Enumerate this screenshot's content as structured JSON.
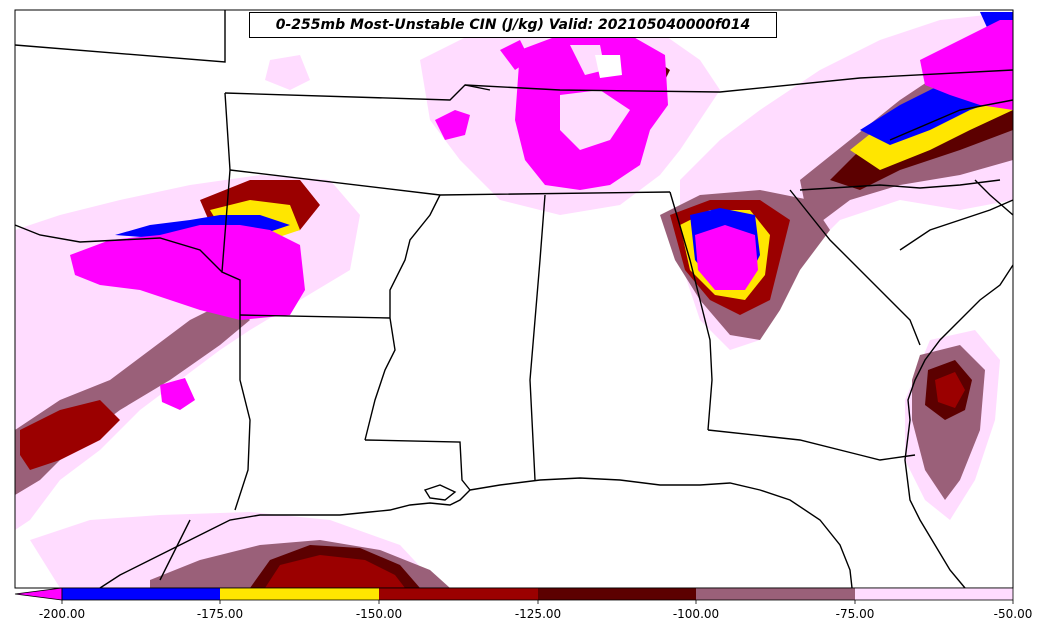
{
  "title": "0-255mb Most-Unstable CIN (J/kg) Valid: 202105040000f014",
  "colorbar": {
    "ticks": [
      "-200.00",
      "-175.00",
      "-150.00",
      "-125.00",
      "-100.00",
      "-75.00",
      "-50.00"
    ],
    "levels": [
      {
        "from": -200,
        "to": -175,
        "color": "#0000ff"
      },
      {
        "from": -175,
        "to": -150,
        "color": "#ffe600"
      },
      {
        "from": -150,
        "to": -125,
        "color": "#9b0000"
      },
      {
        "from": -125,
        "to": -100,
        "color": "#5c0000"
      },
      {
        "from": -100,
        "to": -75,
        "color": "#9a6079"
      },
      {
        "from": -75,
        "to": -50,
        "color": "#ffdcff"
      }
    ],
    "extend_color": "#ff00ff"
  },
  "colors": {
    "magenta": "#ff00ff",
    "blue": "#0000ff",
    "yellow": "#ffe600",
    "darkred": "#9b0000",
    "maroon": "#5c0000",
    "mauve": "#9a6079",
    "pink": "#ffdcff"
  }
}
